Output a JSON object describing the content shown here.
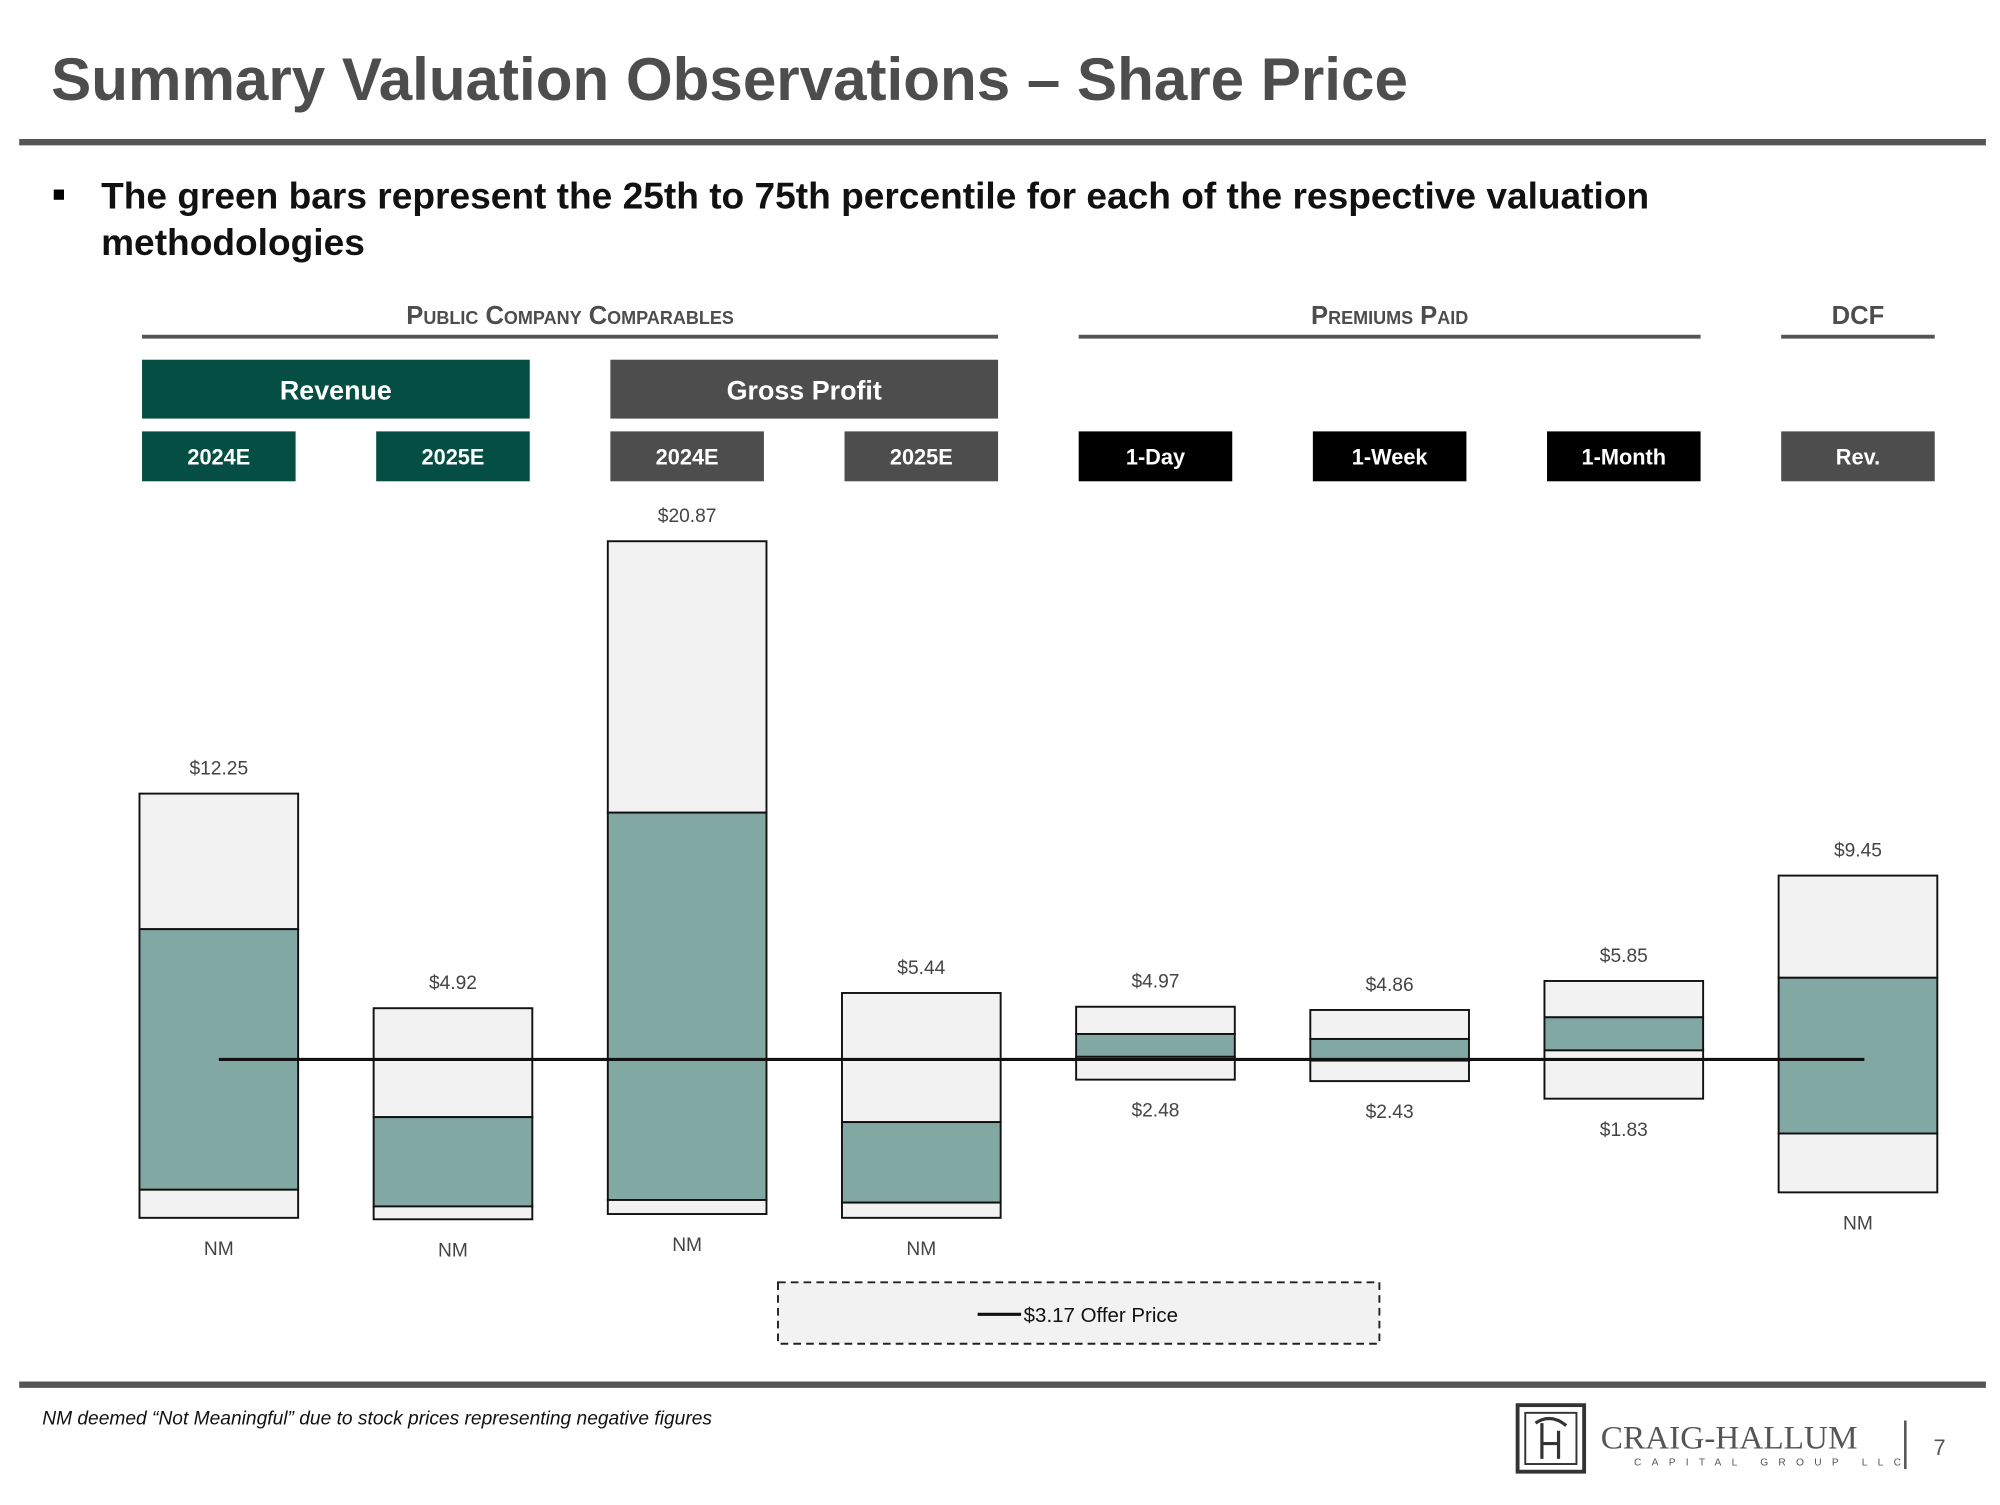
{
  "chart_data": {
    "type": "football-field",
    "title": "Summary Valuation Observations – Share Price",
    "bullet_lines": [
      "The green bars represent the 25th to 75th percentile for each of the respective valuation",
      "methodologies"
    ],
    "ylim": [
      -3,
      22
    ],
    "bar_color": "#f2f2f2",
    "range_color": "#82a8a3",
    "offer_price": {
      "value": 3.17,
      "label": "$3.17 Offer Price"
    },
    "groups": [
      {
        "name": "Public Company Comparables",
        "subgroups": [
          {
            "name": "Revenue",
            "color": "#054e44",
            "columns": [
              {
                "label": "2024E",
                "high": 12.25,
                "p75": 7.62,
                "p25": -1.28,
                "low": -2.24,
                "high_label": "$12.25",
                "low_label": "NM"
              },
              {
                "label": "2025E",
                "high": 4.92,
                "p75": 1.2,
                "p25": -1.85,
                "low": -2.29,
                "high_label": "$4.92",
                "low_label": "NM"
              }
            ]
          },
          {
            "name": "Gross Profit",
            "color": "#4d4d4d",
            "columns": [
              {
                "label": "2024E",
                "high": 20.87,
                "p75": 11.6,
                "p25": -1.63,
                "low": -2.11,
                "high_label": "$20.87",
                "low_label": "NM"
              },
              {
                "label": "2025E",
                "high": 5.44,
                "p75": 1.03,
                "p25": -1.72,
                "low": -2.24,
                "high_label": "$5.44",
                "low_label": "NM"
              }
            ]
          }
        ]
      },
      {
        "name": "Premiums Paid",
        "subgroups": [
          {
            "color": "#000000",
            "columns": [
              {
                "label": "1-Day",
                "high": 4.97,
                "p75": 4.04,
                "p25": 3.26,
                "low": 2.48,
                "high_label": "$4.97",
                "low_label": "$2.48"
              },
              {
                "label": "1-Week",
                "high": 4.86,
                "p75": 3.87,
                "p25": 3.13,
                "low": 2.43,
                "high_label": "$4.86",
                "low_label": "$2.43"
              },
              {
                "label": "1-Month",
                "high": 5.85,
                "p75": 4.61,
                "p25": 3.48,
                "low": 1.83,
                "high_label": "$5.85",
                "low_label": "$1.83"
              }
            ]
          }
        ]
      },
      {
        "name": "DCF",
        "subgroups": [
          {
            "color": "#4d4d4d",
            "columns": [
              {
                "label": "Rev.",
                "high": 9.45,
                "p75": 5.96,
                "p25": 0.64,
                "low": -1.37,
                "high_label": "$9.45",
                "low_label": "NM"
              }
            ]
          }
        ]
      }
    ],
    "footnote": "NM deemed “Not Meaningful” due to stock prices representing negative figures",
    "logo_name": "CRAIG-HALLUM",
    "logo_sub": "CAPITAL GROUP LLC",
    "page_number": "7"
  }
}
